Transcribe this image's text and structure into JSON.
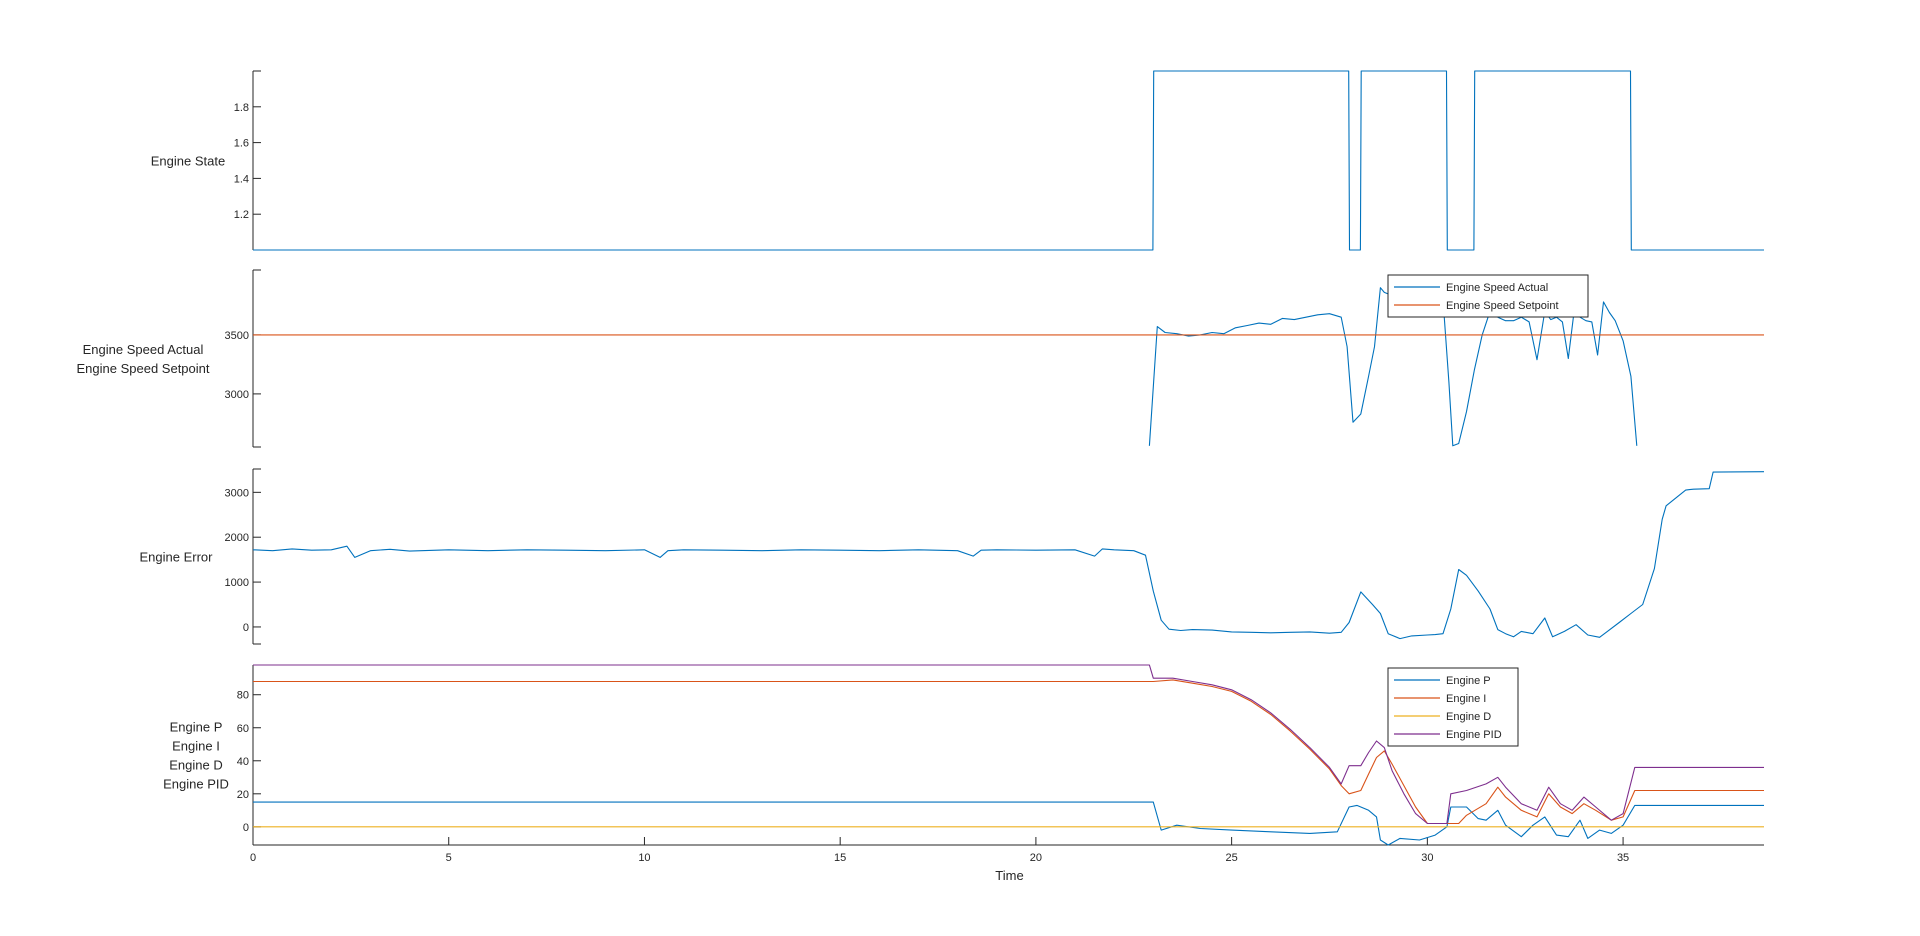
{
  "chart_data": [
    {
      "type": "line",
      "ylabel": [
        "Engine State"
      ],
      "ylim": [
        1,
        2
      ],
      "yticks": [
        1.2,
        1.4,
        1.6,
        1.8
      ],
      "xlim": [
        0,
        38.6
      ],
      "grid": false,
      "legend": null,
      "series": [
        {
          "color": "#0072BD",
          "x": [
            0,
            22.99,
            23.01,
            27.99,
            28.01,
            28.29,
            28.31,
            30.49,
            30.51,
            31.19,
            31.21,
            35.19,
            35.21,
            38.6
          ],
          "y": [
            1,
            1,
            2,
            2,
            1,
            1,
            2,
            2,
            1,
            1,
            2,
            2,
            1,
            1
          ]
        }
      ]
    },
    {
      "type": "line",
      "ylabel": [
        "Engine Speed Actual",
        "Engine Speed Setpoint"
      ],
      "ylim": [
        2550,
        4050
      ],
      "yticks": [
        3000,
        3500
      ],
      "xlim": [
        0,
        38.6
      ],
      "grid": false,
      "legend": "top-right",
      "series": [
        {
          "name": "Engine Speed Actual",
          "color": "#0072BD",
          "x": [
            22.9,
            23.1,
            23.3,
            23.6,
            23.9,
            24.2,
            24.5,
            24.8,
            25.1,
            25.4,
            25.7,
            26.0,
            26.3,
            26.6,
            26.9,
            27.2,
            27.5,
            27.8,
            27.95,
            28.1,
            28.3,
            28.5,
            28.65,
            28.8,
            28.9,
            29.05,
            29.2,
            29.4,
            29.6,
            29.8,
            30.0,
            30.2,
            30.4,
            30.55,
            30.65,
            30.8,
            31.0,
            31.2,
            31.4,
            31.6,
            31.8,
            32.0,
            32.2,
            32.4,
            32.6,
            32.8,
            33.0,
            33.15,
            33.3,
            33.45,
            33.6,
            33.75,
            33.9,
            34.05,
            34.2,
            34.35,
            34.5,
            34.65,
            34.8,
            35.0,
            35.2,
            35.35
          ],
          "y": [
            2560,
            3570,
            3520,
            3510,
            3490,
            3500,
            3520,
            3510,
            3560,
            3580,
            3600,
            3590,
            3640,
            3630,
            3650,
            3670,
            3680,
            3650,
            3400,
            2760,
            2830,
            3150,
            3400,
            3900,
            3860,
            3840,
            3880,
            3880,
            3890,
            3900,
            3890,
            3880,
            3800,
            3100,
            2560,
            2580,
            2850,
            3200,
            3500,
            3700,
            3650,
            3620,
            3620,
            3650,
            3610,
            3290,
            3700,
            3630,
            3650,
            3610,
            3300,
            3700,
            3650,
            3620,
            3610,
            3330,
            3780,
            3690,
            3620,
            3450,
            3150,
            2560
          ]
        },
        {
          "name": "Engine Speed Setpoint",
          "color": "#D95319",
          "x": [
            0,
            38.6
          ],
          "y": [
            3500,
            3500
          ]
        }
      ]
    },
    {
      "type": "line",
      "ylabel": [
        "Engine Error"
      ],
      "ylim": [
        -380,
        3520
      ],
      "yticks": [
        0,
        1000,
        2000,
        3000
      ],
      "xlim": [
        0,
        38.6
      ],
      "grid": false,
      "legend": null,
      "series": [
        {
          "color": "#0072BD",
          "x": [
            0,
            0.5,
            1.0,
            1.5,
            2.0,
            2.4,
            2.6,
            3.0,
            3.5,
            4.0,
            5.0,
            6.0,
            7.0,
            8.0,
            9.0,
            10.0,
            10.4,
            10.6,
            11.0,
            12.0,
            13.0,
            14.0,
            15.0,
            16.0,
            17.0,
            18.0,
            18.4,
            18.6,
            19.0,
            20.0,
            21.0,
            21.5,
            21.7,
            22.0,
            22.5,
            22.8,
            23.0,
            23.2,
            23.4,
            23.7,
            24.0,
            24.5,
            25.0,
            25.5,
            26.0,
            26.5,
            27.0,
            27.5,
            27.8,
            28.0,
            28.3,
            28.6,
            28.8,
            29.0,
            29.3,
            29.6,
            30.0,
            30.2,
            30.4,
            30.6,
            30.8,
            31.0,
            31.3,
            31.6,
            31.8,
            32.0,
            32.2,
            32.4,
            32.7,
            33.0,
            33.2,
            33.5,
            33.8,
            34.1,
            34.4,
            34.6,
            34.9,
            35.2,
            35.5,
            35.8,
            36.0,
            36.1,
            36.6,
            36.7,
            36.8,
            37.2,
            37.3,
            38.6
          ],
          "y": [
            1720,
            1700,
            1740,
            1710,
            1720,
            1800,
            1550,
            1700,
            1730,
            1690,
            1720,
            1700,
            1720,
            1710,
            1700,
            1720,
            1550,
            1700,
            1720,
            1710,
            1700,
            1720,
            1710,
            1700,
            1720,
            1700,
            1580,
            1710,
            1720,
            1710,
            1720,
            1580,
            1740,
            1720,
            1700,
            1600,
            800,
            150,
            -50,
            -80,
            -60,
            -70,
            -110,
            -120,
            -130,
            -120,
            -110,
            -140,
            -120,
            100,
            780,
            500,
            300,
            -150,
            -260,
            -200,
            -180,
            -170,
            -150,
            400,
            1280,
            1150,
            800,
            400,
            -60,
            -150,
            -220,
            -100,
            -150,
            200,
            -220,
            -100,
            50,
            -180,
            -230,
            -100,
            100,
            300,
            500,
            1300,
            2400,
            2700,
            3050,
            3060,
            3070,
            3080,
            3450,
            3460
          ]
        }
      ]
    },
    {
      "type": "line",
      "ylabel": [
        "Engine P",
        "Engine I",
        "Engine D",
        "Engine PID"
      ],
      "ylim": [
        -11,
        98
      ],
      "yticks": [
        0,
        20,
        40,
        60,
        80
      ],
      "xlim": [
        0,
        38.6
      ],
      "xlabel": "Time",
      "xticks": [
        0,
        5,
        10,
        15,
        20,
        25,
        30,
        35
      ],
      "grid": false,
      "legend": "top-right",
      "series": [
        {
          "name": "Engine P",
          "color": "#0072BD",
          "x": [
            0,
            22.9,
            23.0,
            23.2,
            23.6,
            24.2,
            25.0,
            26.0,
            27.0,
            27.7,
            28.0,
            28.2,
            28.5,
            28.7,
            28.8,
            29.0,
            29.3,
            29.8,
            30.2,
            30.5,
            30.6,
            31.0,
            31.3,
            31.5,
            31.8,
            32.0,
            32.4,
            32.7,
            33.0,
            33.3,
            33.6,
            33.9,
            34.1,
            34.4,
            34.7,
            35.0,
            35.3,
            38.6
          ],
          "y": [
            15,
            15,
            15,
            -2,
            1,
            -1,
            -2,
            -3,
            -4,
            -3,
            12,
            13,
            10,
            6,
            -8,
            -11,
            -7,
            -8,
            -5,
            0,
            12,
            12,
            5,
            4,
            10,
            1,
            -6,
            1,
            6,
            -5,
            -6,
            4,
            -7,
            -2,
            -4,
            1,
            13,
            13
          ]
        },
        {
          "name": "Engine I",
          "color": "#D95319",
          "x": [
            0,
            22.9,
            23.0,
            23.5,
            24.0,
            24.5,
            25.0,
            25.5,
            26.0,
            26.5,
            27.0,
            27.5,
            27.8,
            28.0,
            28.3,
            28.5,
            28.7,
            28.9,
            29.1,
            29.4,
            29.7,
            30.0,
            30.5,
            30.8,
            31.0,
            31.5,
            31.8,
            32.0,
            32.4,
            32.8,
            33.1,
            33.4,
            33.7,
            34.0,
            34.3,
            34.7,
            35.0,
            35.3,
            38.6
          ],
          "y": [
            88,
            88,
            88,
            89,
            87,
            85,
            82,
            76,
            68,
            58,
            47,
            35,
            25,
            20,
            22,
            32,
            42,
            46,
            38,
            25,
            12,
            2,
            2,
            2,
            7,
            14,
            24,
            18,
            10,
            6,
            20,
            12,
            8,
            14,
            10,
            4,
            6,
            22,
            22
          ]
        },
        {
          "name": "Engine D",
          "color": "#EDB120",
          "x": [
            0,
            38.6
          ],
          "y": [
            0,
            0
          ]
        },
        {
          "name": "Engine PID",
          "color": "#7E2F8E",
          "x": [
            0,
            22.9,
            23.0,
            23.5,
            24.0,
            24.5,
            25.0,
            25.5,
            26.0,
            26.5,
            27.0,
            27.5,
            27.8,
            28.0,
            28.3,
            28.5,
            28.7,
            28.9,
            29.1,
            29.4,
            29.7,
            30.0,
            30.5,
            30.6,
            31.0,
            31.5,
            31.8,
            32.0,
            32.4,
            32.8,
            33.1,
            33.4,
            33.7,
            34.0,
            34.3,
            34.7,
            35.0,
            35.3,
            38.6
          ],
          "y": [
            98,
            98,
            90,
            90,
            88,
            86,
            83,
            77,
            69,
            59,
            48,
            36,
            26,
            37,
            37,
            45,
            52,
            48,
            34,
            20,
            8,
            2,
            2,
            20,
            22,
            26,
            30,
            24,
            14,
            10,
            24,
            14,
            10,
            18,
            12,
            4,
            8,
            36,
            36
          ]
        }
      ]
    }
  ]
}
